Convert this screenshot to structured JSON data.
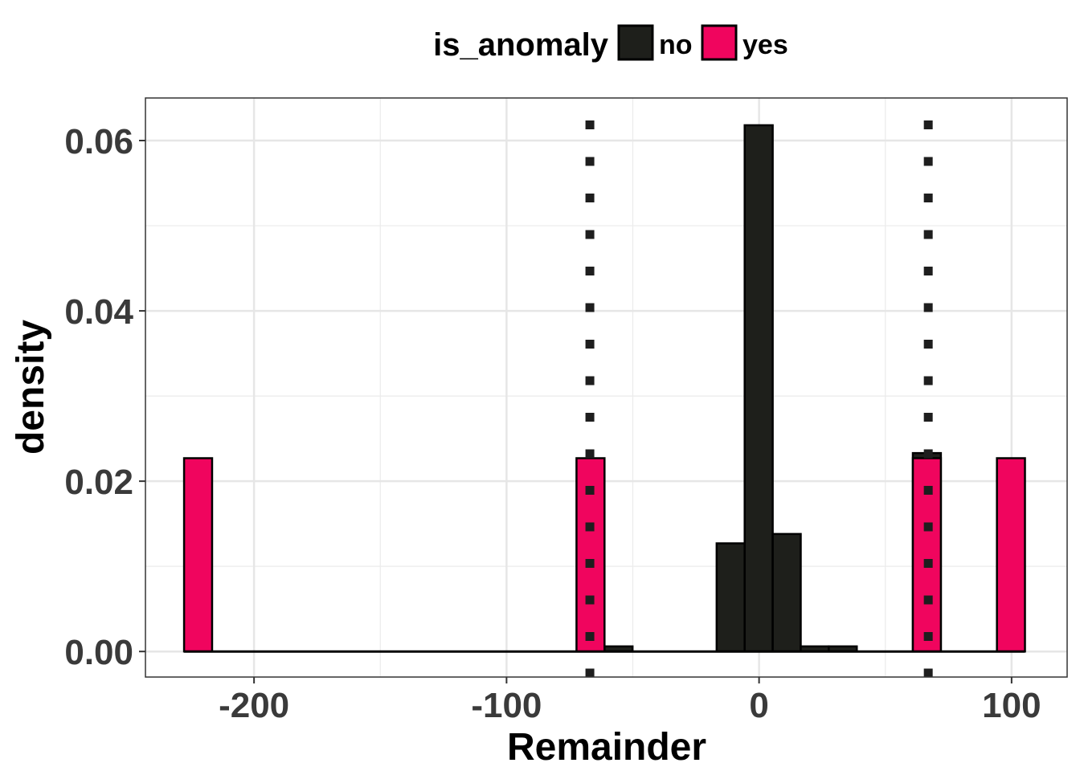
{
  "chart_data": {
    "type": "bar",
    "title": "",
    "xlabel": "Remainder",
    "ylabel": "density",
    "xlim": [
      -243,
      122
    ],
    "ylim": [
      -0.003,
      0.065
    ],
    "x_ticks": [
      -200,
      -100,
      0,
      100
    ],
    "x_tick_labels": [
      "-200",
      "-100",
      "0",
      "100"
    ],
    "y_ticks": [
      0.0,
      0.02,
      0.04,
      0.06
    ],
    "y_tick_labels": [
      "0.00",
      "0.02",
      "0.04",
      "0.06"
    ],
    "grid": true,
    "legend": {
      "title": "is_anomaly",
      "position": "top",
      "entries": [
        {
          "label": "no",
          "color": "#1e1f1b"
        },
        {
          "label": "yes",
          "color": "#f0055e"
        }
      ]
    },
    "bin_width": 11.1,
    "series": [
      {
        "name": "no",
        "color": "#1e1f1b",
        "bins": [
          {
            "start": -61.2,
            "end": -50.1,
            "value": 0.0006
          },
          {
            "start": -16.8,
            "end": -5.7,
            "value": 0.0127
          },
          {
            "start": -5.7,
            "end": 5.4,
            "value": 0.0618
          },
          {
            "start": 5.4,
            "end": 16.5,
            "value": 0.0138
          },
          {
            "start": 16.5,
            "end": 27.6,
            "value": 0.0006
          },
          {
            "start": 27.6,
            "end": 38.7,
            "value": 0.0006
          },
          {
            "start": 60.9,
            "end": 72.0,
            "value": 0.0233
          }
        ]
      },
      {
        "name": "yes",
        "color": "#f0055e",
        "bins": [
          {
            "start": -227.7,
            "end": -216.6,
            "value": 0.0227
          },
          {
            "start": -72.3,
            "end": -61.2,
            "value": 0.0227
          },
          {
            "start": 60.9,
            "end": 72.0,
            "value": 0.0227
          },
          {
            "start": 94.2,
            "end": 105.3,
            "value": 0.0227
          }
        ]
      }
    ],
    "baseline": {
      "start": -227.7,
      "end": 105.3,
      "value": 0
    },
    "reference_lines": [
      {
        "x": -67,
        "style": "dotted"
      },
      {
        "x": 67,
        "style": "dotted"
      }
    ]
  }
}
